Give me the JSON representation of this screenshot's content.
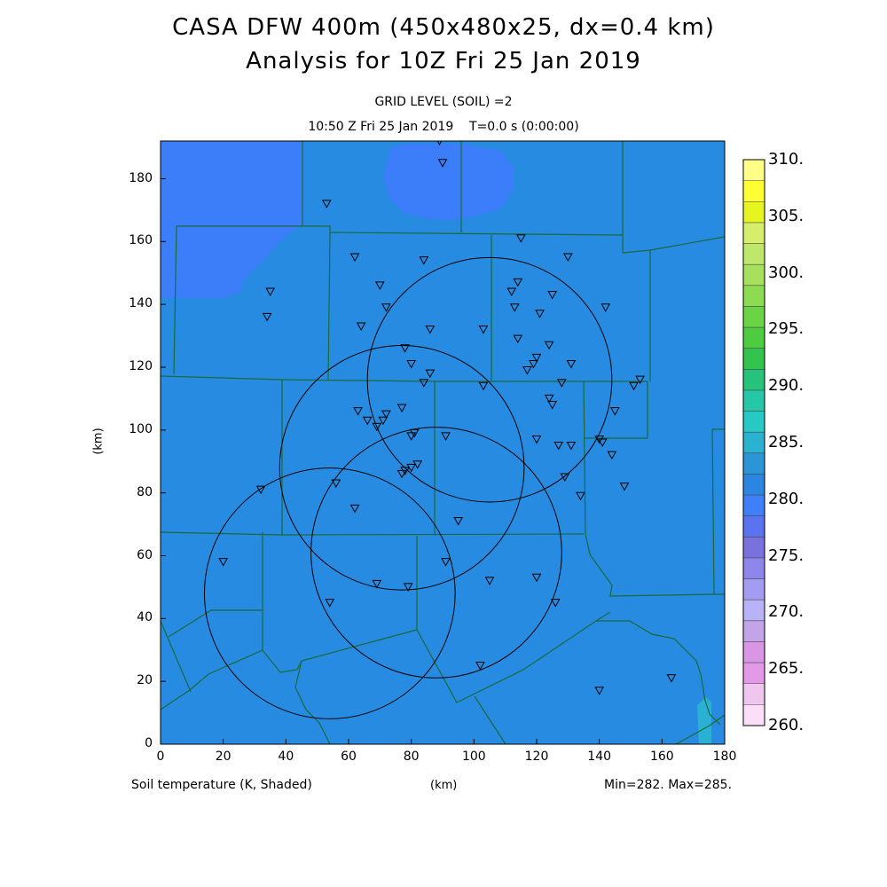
{
  "header": {
    "title_line1": "CASA DFW 400m (450x480x25, dx=0.4 km)",
    "title_line2": "Analysis for 10Z Fri 25 Jan 2019",
    "grid_level": "GRID LEVEL (SOIL) =2",
    "valid_time": "10:50 Z Fri 25 Jan 2019    T=0.0 s (0:00:00)"
  },
  "footer": {
    "field_label": "Soil temperature (K, Shaded)",
    "x_unit": "(km)",
    "minmax": "Min=282. Max=285."
  },
  "axes": {
    "x_ticks": [
      "0",
      "20",
      "40",
      "60",
      "80",
      "100",
      "120",
      "140",
      "160",
      "180"
    ],
    "y_ticks": [
      "0",
      "20",
      "40",
      "60",
      "80",
      "100",
      "120",
      "140",
      "160",
      "180"
    ],
    "ylabel": "(km)",
    "x_range_km": [
      0,
      180
    ],
    "y_range_km": [
      0,
      192
    ]
  },
  "colorbar": {
    "labels": [
      "310.",
      "305.",
      "300.",
      "295.",
      "290.",
      "285.",
      "280.",
      "275.",
      "270.",
      "265.",
      "260."
    ],
    "colors_top_to_bottom": [
      "#ffff88",
      "#ffff33",
      "#e6f51f",
      "#d6ee6b",
      "#bfe86a",
      "#a6e05c",
      "#8cdb50",
      "#6bd446",
      "#4dcc3f",
      "#33c44d",
      "#26c47a",
      "#24c8a6",
      "#26c9c4",
      "#2ab2d0",
      "#2a96d8",
      "#2a86e0",
      "#3f7ffa",
      "#5b73f0",
      "#7a72dc",
      "#8f86ec",
      "#a49cf2",
      "#b9b2f6",
      "#c3a4e8",
      "#d896e4",
      "#e29ae6",
      "#eec6ee",
      "#fbdff9"
    ]
  },
  "field": {
    "main_color": "#278be2",
    "cool_color": "#3c7dfa",
    "warm_color": "#2ab0d2",
    "description_units": "K"
  },
  "radars": [
    {
      "x": 105,
      "y": 116,
      "r": 39
    },
    {
      "x": 77,
      "y": 88,
      "r": 39
    },
    {
      "x": 88,
      "y": 61,
      "r": 40
    },
    {
      "x": 54,
      "y": 48,
      "r": 40
    }
  ],
  "stations": [
    [
      89,
      192
    ],
    [
      90,
      185
    ],
    [
      53,
      172
    ],
    [
      115,
      161
    ],
    [
      62,
      155
    ],
    [
      84,
      154
    ],
    [
      130,
      155
    ],
    [
      70,
      146
    ],
    [
      125,
      143
    ],
    [
      112,
      144
    ],
    [
      114,
      147
    ],
    [
      35,
      144
    ],
    [
      34,
      136
    ],
    [
      72,
      139
    ],
    [
      113,
      139
    ],
    [
      121,
      137
    ],
    [
      142,
      139
    ],
    [
      64,
      133
    ],
    [
      86,
      132
    ],
    [
      103,
      132
    ],
    [
      114,
      129
    ],
    [
      124,
      127
    ],
    [
      78,
      126
    ],
    [
      80,
      121
    ],
    [
      86,
      118
    ],
    [
      120,
      123
    ],
    [
      119,
      121
    ],
    [
      117,
      119
    ],
    [
      131,
      121
    ],
    [
      84,
      115
    ],
    [
      103,
      114
    ],
    [
      128,
      115
    ],
    [
      124,
      110
    ],
    [
      125,
      108
    ],
    [
      151,
      114
    ],
    [
      153,
      116
    ],
    [
      145,
      106
    ],
    [
      63,
      106
    ],
    [
      77,
      107
    ],
    [
      72,
      105
    ],
    [
      71,
      103
    ],
    [
      66,
      103
    ],
    [
      69,
      101
    ],
    [
      81,
      99
    ],
    [
      80,
      98
    ],
    [
      91,
      98
    ],
    [
      120,
      97
    ],
    [
      140,
      97
    ],
    [
      141,
      96
    ],
    [
      127,
      95
    ],
    [
      131,
      95
    ],
    [
      144,
      92
    ],
    [
      82,
      89
    ],
    [
      80,
      88
    ],
    [
      78,
      87
    ],
    [
      77,
      86
    ],
    [
      129,
      85
    ],
    [
      148,
      82
    ],
    [
      32,
      81
    ],
    [
      56,
      83
    ],
    [
      134,
      79
    ],
    [
      62,
      75
    ],
    [
      95,
      71
    ],
    [
      91,
      58
    ],
    [
      20,
      58
    ],
    [
      120,
      53
    ],
    [
      105,
      52
    ],
    [
      69,
      51
    ],
    [
      79,
      50
    ],
    [
      126,
      45
    ],
    [
      54,
      45
    ],
    [
      102,
      25
    ],
    [
      140,
      17
    ],
    [
      163,
      21
    ]
  ]
}
